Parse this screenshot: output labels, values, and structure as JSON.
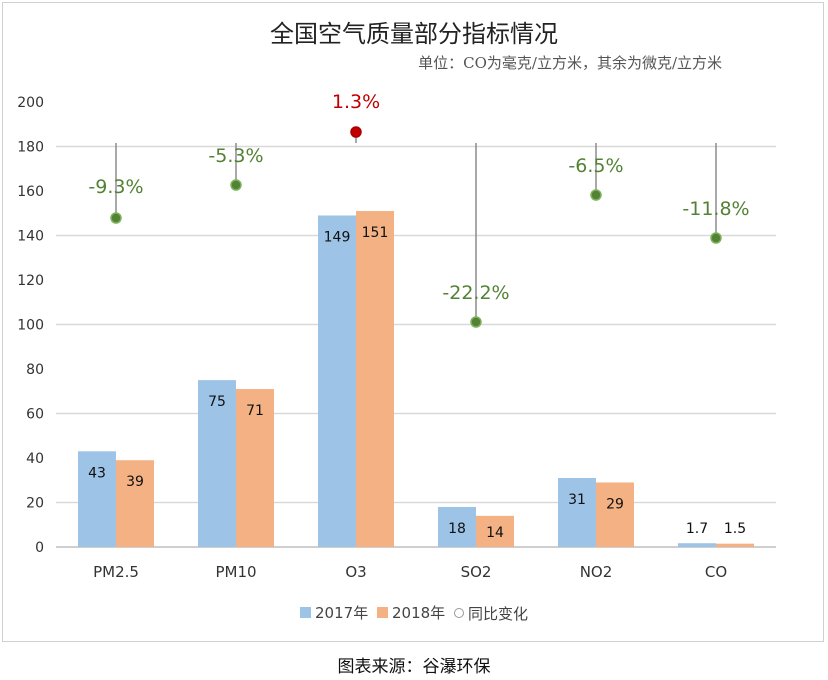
{
  "chart_data": {
    "type": "bar",
    "title": "全国空气质量部分指标情况",
    "subtitle": "单位：CO为毫克/立方米，其余为微克/立方米",
    "categories": [
      "PM2.5",
      "PM10",
      "O3",
      "SO2",
      "NO2",
      "CO"
    ],
    "series": [
      {
        "name": "2017年",
        "values": [
          43,
          75,
          149,
          18,
          31,
          1.7
        ],
        "color": "#9dc3e6"
      },
      {
        "name": "2018年",
        "values": [
          39,
          71,
          151,
          14,
          29,
          1.5
        ],
        "color": "#f4b183"
      }
    ],
    "change": {
      "name": "同比变化",
      "labels": [
        "-9.3%",
        "-5.3%",
        "1.3%",
        "-22.2%",
        "-6.5%",
        "-11.8%"
      ],
      "values": [
        -9.3,
        -5.3,
        1.3,
        -22.2,
        -6.5,
        -11.8
      ],
      "positive_color": "#c00000",
      "negative_color": "#548235"
    },
    "yticks": [
      0,
      20,
      40,
      60,
      80,
      100,
      120,
      140,
      160,
      180,
      200
    ],
    "ylim": [
      0,
      200
    ],
    "grid": true,
    "legend_position": "bottom"
  },
  "source": "图表来源：谷瀑环保"
}
